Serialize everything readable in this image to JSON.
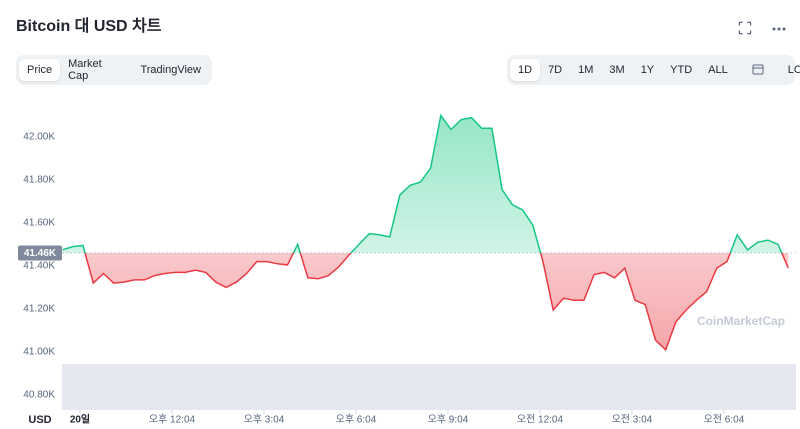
{
  "header": {
    "title": "Bitcoin 대 USD 차트",
    "tabs": [
      "Price",
      "Market Cap",
      "TradingView"
    ],
    "active_tab": 0,
    "ranges": [
      "1D",
      "7D",
      "1M",
      "3M",
      "1Y",
      "YTD",
      "ALL"
    ],
    "active_range": 0,
    "log": "LOG"
  },
  "chart_data": {
    "type": "line",
    "currency_label": "USD",
    "watermark": "CoinMarketCap",
    "color_up": "#16c784",
    "color_down": "#ea3943",
    "reference": {
      "value": 41460,
      "label": "41.46K"
    },
    "x": [
      510,
      530,
      550,
      570,
      590,
      610,
      630,
      650,
      670,
      690,
      710,
      730,
      750,
      770,
      790,
      810,
      830,
      850,
      870,
      890,
      910,
      930,
      950,
      970,
      990,
      1010,
      1030,
      1050,
      1070,
      1090,
      1110,
      1130,
      1150,
      1170,
      1190,
      1210,
      1230,
      1250,
      1270,
      1290,
      1310,
      1330,
      1350,
      1370,
      1390,
      1410,
      1430,
      1450,
      1470,
      1490,
      1510,
      1530,
      1550,
      1570,
      1590,
      1610,
      1630,
      1650,
      1670,
      1690,
      1710,
      1730,
      1750,
      1770,
      1790,
      1810,
      1830,
      1850,
      1870,
      1890,
      1910,
      1930
    ],
    "values": [
      41475,
      41490,
      41495,
      41320,
      41365,
      41320,
      41325,
      41335,
      41335,
      41355,
      41365,
      41370,
      41370,
      41380,
      41370,
      41325,
      41300,
      41325,
      41365,
      41420,
      41420,
      41410,
      41405,
      41500,
      41345,
      41340,
      41355,
      41395,
      41450,
      41500,
      41550,
      41545,
      41535,
      41730,
      41775,
      41790,
      41855,
      42100,
      42035,
      42080,
      42090,
      42040,
      42040,
      41755,
      41685,
      41660,
      41590,
      41420,
      41195,
      41250,
      41240,
      41240,
      41360,
      41370,
      41345,
      41390,
      41240,
      41220,
      41055,
      41010,
      41140,
      41195,
      41240,
      41280,
      41390,
      41420,
      41545,
      41475,
      41510,
      41520,
      41500,
      41390
    ],
    "xlim": [
      510,
      1944
    ],
    "xticks": [
      {
        "value": 544,
        "label": "20일"
      },
      {
        "value": 724,
        "label": "오후 12:04"
      },
      {
        "value": 904,
        "label": "오후 3:04"
      },
      {
        "value": 1084,
        "label": "오후 6:04"
      },
      {
        "value": 1264,
        "label": "오후 9:04"
      },
      {
        "value": 1444,
        "label": "오전 12:04"
      },
      {
        "value": 1624,
        "label": "오전 3:04"
      },
      {
        "value": 1804,
        "label": "오전 6:04"
      }
    ],
    "ylim": [
      40730,
      42195
    ],
    "yticks": [
      {
        "value": 40800,
        "label": "40.80K"
      },
      {
        "value": 41000,
        "label": "41.00K"
      },
      {
        "value": 41200,
        "label": "41.20K"
      },
      {
        "value": 41400,
        "label": "41.40K"
      },
      {
        "value": 41600,
        "label": "41.60K"
      },
      {
        "value": 41800,
        "label": "41.80K"
      },
      {
        "value": 42000,
        "label": "42.00K"
      }
    ],
    "grid": false
  }
}
